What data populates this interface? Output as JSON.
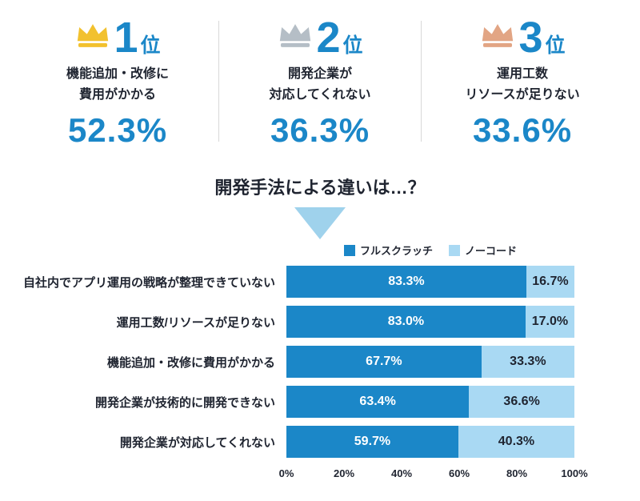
{
  "colors": {
    "accent": "#1b87c8",
    "dark": "#1f2430",
    "divider": "#d8d8d8",
    "triangle": "#9fd2ec"
  },
  "rankings": [
    {
      "rank": "1",
      "suffix": "位",
      "lines": [
        "機能追加・改修に",
        "費用がかかる"
      ],
      "value": "52.3%",
      "crown_color": "#f2c12e"
    },
    {
      "rank": "2",
      "suffix": "位",
      "lines": [
        "開発企業が",
        "対応してくれない"
      ],
      "value": "36.3%",
      "crown_color": "#b5bec6"
    },
    {
      "rank": "3",
      "suffix": "位",
      "lines": [
        "運用工数",
        "リソースが足りない"
      ],
      "value": "33.6%",
      "crown_color": "#e2a584"
    }
  ],
  "question": "開発手法による違いは…？",
  "chart_data": {
    "type": "bar",
    "orientation": "horizontal",
    "stacked": true,
    "legend_position": "top",
    "categories": [
      "自社内でアプリ運用の戦略が整理できていない",
      "運用工数/リソースが足りない",
      "機能追加・改修に費用がかかる",
      "開発企業が技術的に開発できない",
      "開発企業が対応してくれない"
    ],
    "series": [
      {
        "name": "フルスクラッチ",
        "color": "#1b87c8",
        "values": [
          83.3,
          83.0,
          67.7,
          63.4,
          59.7
        ],
        "labels": [
          "83.3%",
          "83.0%",
          "67.7%",
          "63.4%",
          "59.7%"
        ]
      },
      {
        "name": "ノーコード",
        "color": "#a9d9f3",
        "values": [
          16.7,
          17.0,
          33.3,
          36.6,
          40.3
        ],
        "labels": [
          "16.7%",
          "17.0%",
          "33.3%",
          "36.6%",
          "40.3%"
        ]
      }
    ],
    "x_ticks": [
      "0%",
      "20%",
      "40%",
      "60%",
      "80%",
      "100%"
    ],
    "xlim": [
      0,
      100
    ]
  }
}
